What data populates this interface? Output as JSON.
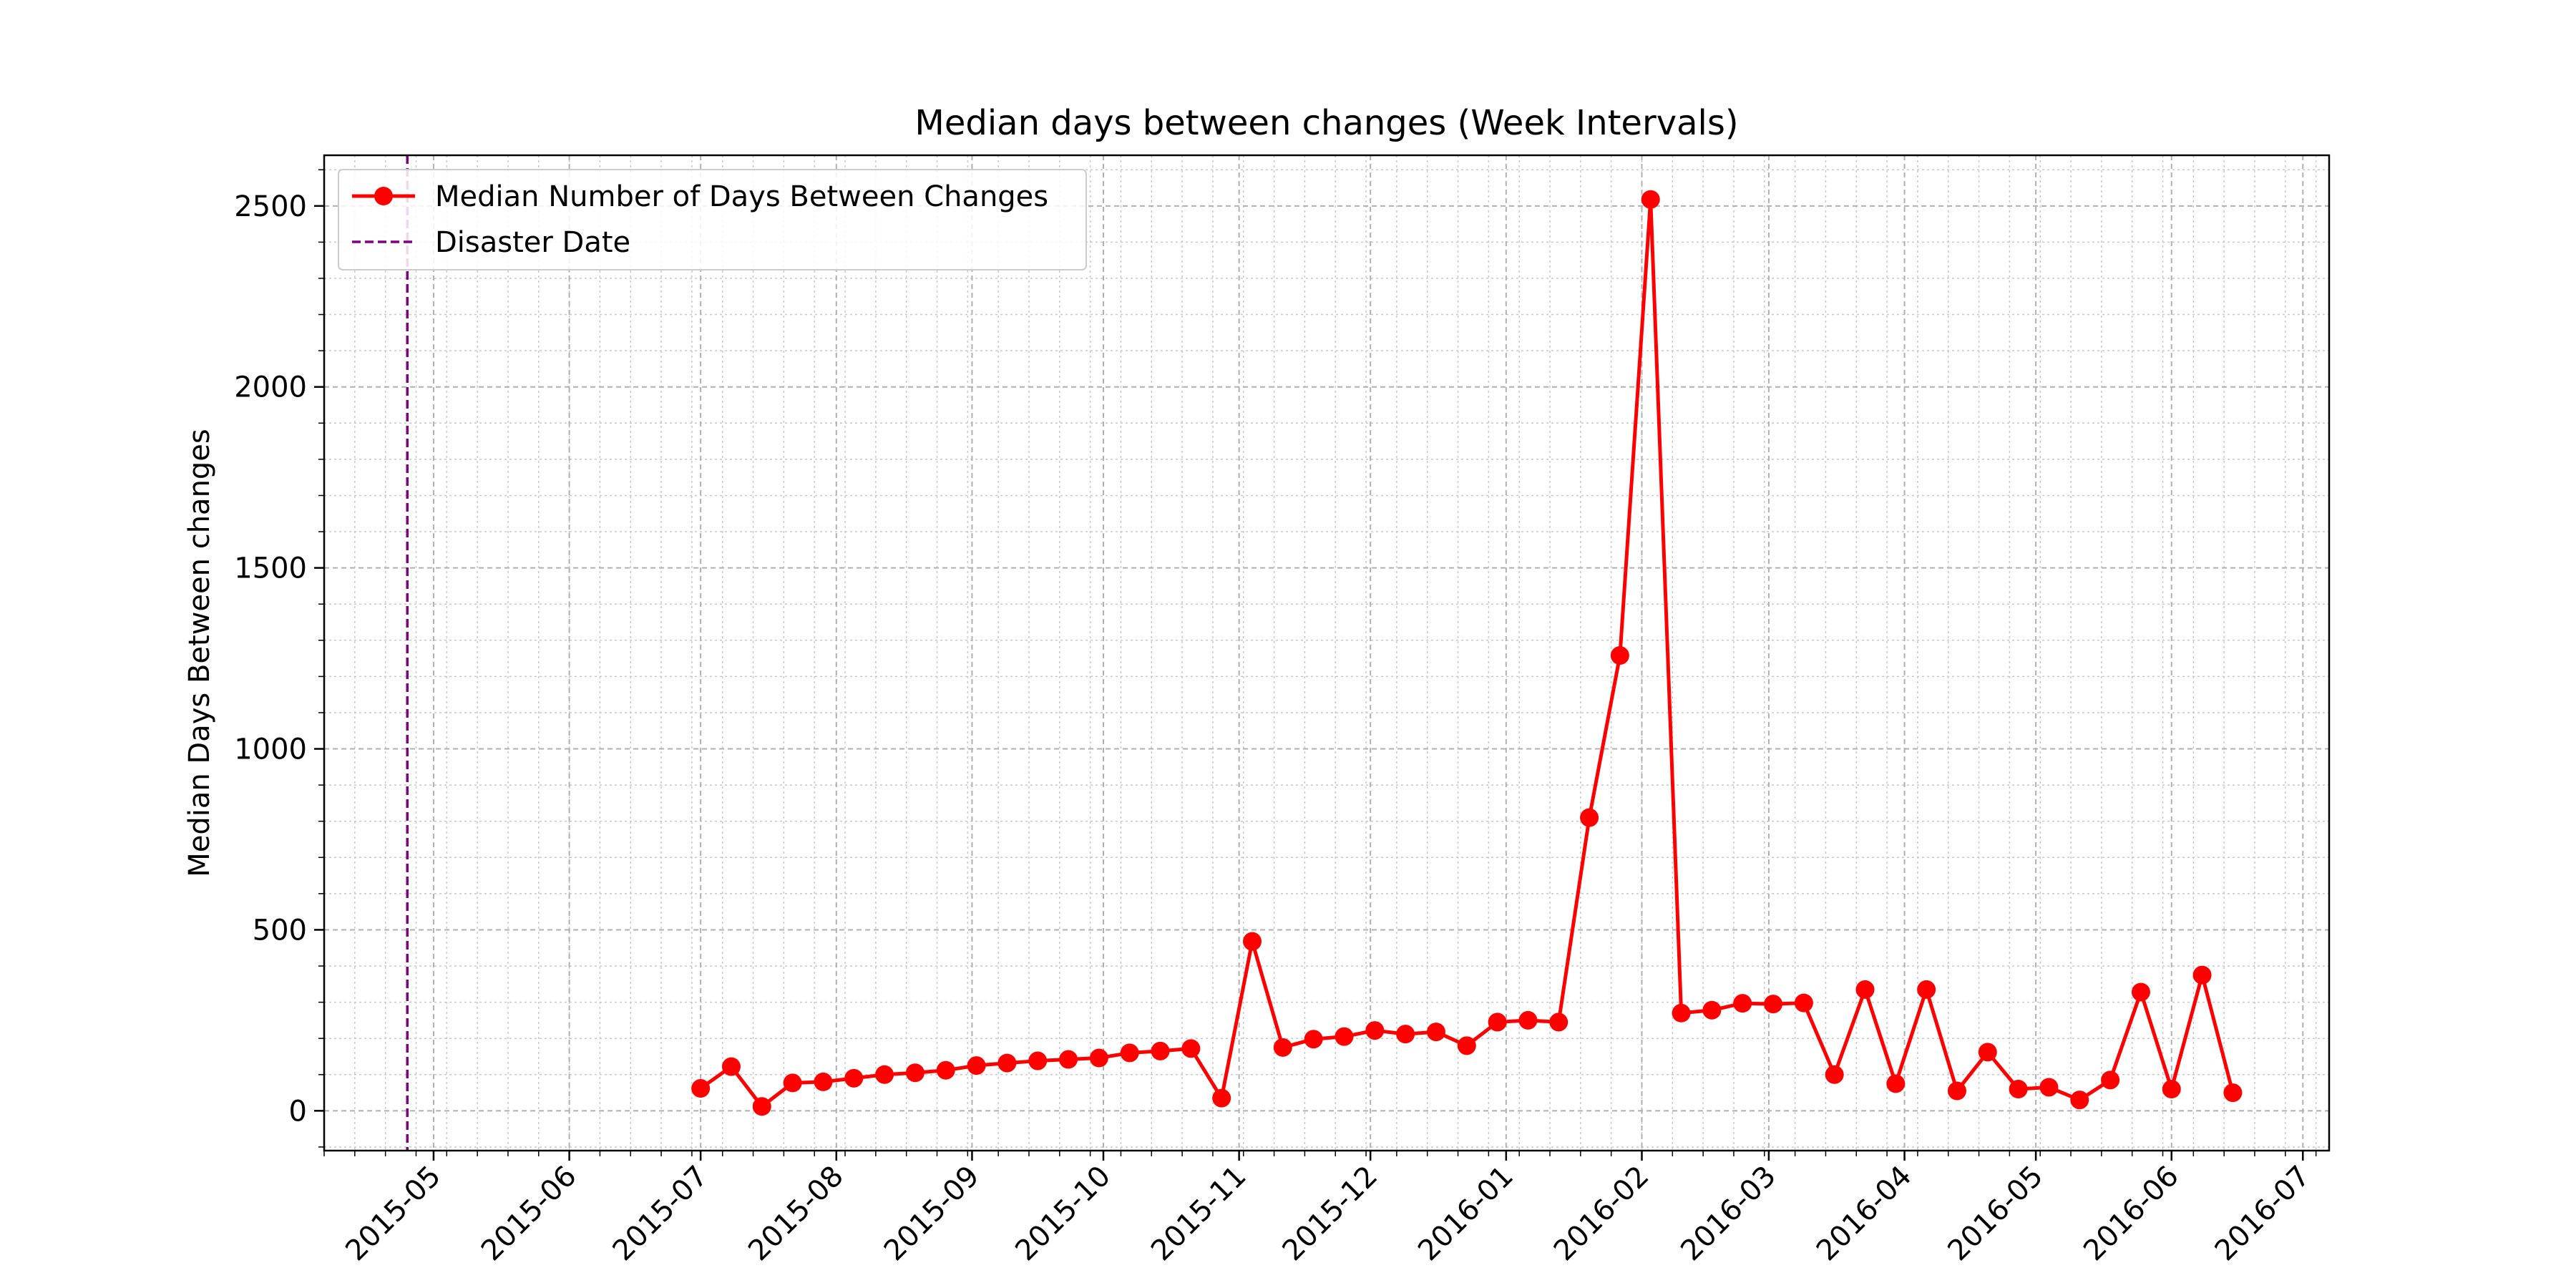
{
  "chart_data": {
    "type": "line",
    "title": "Median days between changes (Week Intervals)",
    "xlabel": "",
    "ylabel": "Median Days Between changes",
    "x_axis_type": "date",
    "xlim": [
      "2015-04-06",
      "2016-07-07"
    ],
    "ylim": [
      -110,
      2640
    ],
    "x_ticks": [
      "2015-05",
      "2015-06",
      "2015-07",
      "2015-08",
      "2015-09",
      "2015-10",
      "2015-11",
      "2015-12",
      "2016-01",
      "2016-02",
      "2016-03",
      "2016-04",
      "2016-05",
      "2016-06",
      "2016-07"
    ],
    "y_ticks": [
      0,
      500,
      1000,
      1500,
      2000,
      2500
    ],
    "grid": true,
    "legend_position": "top-left",
    "series": [
      {
        "name": "Median Number of Days Between Changes",
        "color": "#ff0000",
        "marker": "circle",
        "x": [
          "2015-07-01",
          "2015-07-08",
          "2015-07-15",
          "2015-07-22",
          "2015-07-29",
          "2015-08-05",
          "2015-08-12",
          "2015-08-19",
          "2015-08-26",
          "2015-09-02",
          "2015-09-09",
          "2015-09-16",
          "2015-09-23",
          "2015-09-30",
          "2015-10-07",
          "2015-10-14",
          "2015-10-21",
          "2015-10-28",
          "2015-11-04",
          "2015-11-11",
          "2015-11-18",
          "2015-11-25",
          "2015-12-02",
          "2015-12-09",
          "2015-12-16",
          "2015-12-23",
          "2015-12-30",
          "2016-01-06",
          "2016-01-13",
          "2016-01-20",
          "2016-01-27",
          "2016-02-03",
          "2016-02-10",
          "2016-02-17",
          "2016-02-24",
          "2016-03-02",
          "2016-03-09",
          "2016-03-16",
          "2016-03-23",
          "2016-03-30",
          "2016-04-06",
          "2016-04-13",
          "2016-04-20",
          "2016-04-27",
          "2016-05-04",
          "2016-05-11",
          "2016-05-18",
          "2016-05-25",
          "2016-06-01",
          "2016-06-08",
          "2016-06-15"
        ],
        "values": [
          62,
          122,
          12,
          77,
          80,
          90,
          100,
          105,
          112,
          125,
          132,
          138,
          142,
          146,
          160,
          165,
          172,
          35,
          468,
          175,
          198,
          205,
          222,
          212,
          218,
          180,
          245,
          250,
          245,
          810,
          1258,
          2518,
          270,
          278,
          297,
          295,
          298,
          100,
          335,
          75,
          335,
          55,
          162,
          60,
          65,
          30,
          85,
          328,
          60,
          375,
          50
        ]
      }
    ],
    "annotations": [
      {
        "type": "vline",
        "name": "Disaster Date",
        "x": "2015-04-25",
        "color": "#800080",
        "style": "dashed"
      }
    ]
  }
}
